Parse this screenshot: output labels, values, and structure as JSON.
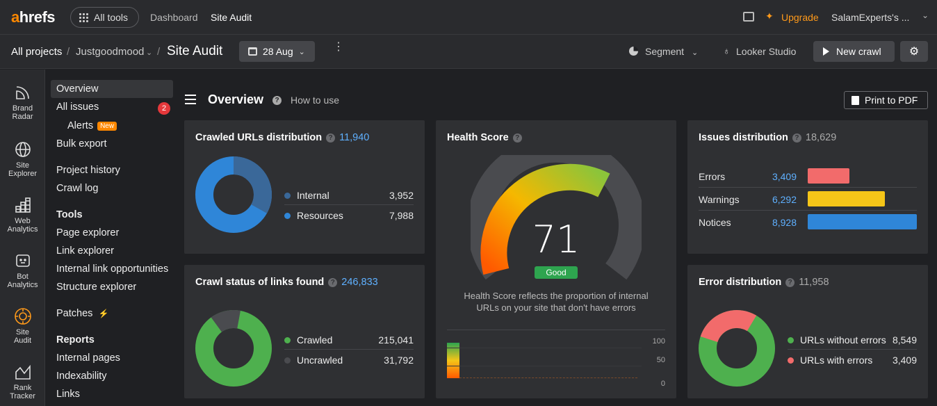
{
  "topbar": {
    "logo_a": "a",
    "logo_rest": "hrefs",
    "all_tools": "All tools",
    "nav": [
      "Dashboard",
      "Site Audit"
    ],
    "upgrade": "Upgrade",
    "account": "SalamExperts's ..."
  },
  "breadcrumb": {
    "all_projects": "All projects",
    "project": "Justgoodmood",
    "page": "Site Audit",
    "sep": "/",
    "date": "28 Aug",
    "segment": "Segment",
    "looker": "Looker Studio",
    "new_crawl": "New crawl"
  },
  "rail": [
    {
      "label": "Brand\nRadar",
      "icon": "radar-icon"
    },
    {
      "label": "Site\nExplorer",
      "icon": "globe-icon"
    },
    {
      "label": "Web\nAnalytics",
      "icon": "analytics-icon"
    },
    {
      "label": "Bot\nAnalytics",
      "icon": "bot-icon"
    },
    {
      "label": "Site\nAudit",
      "icon": "site-audit-icon"
    },
    {
      "label": "Rank\nTracker",
      "icon": "rank-tracker-icon"
    }
  ],
  "sidebar": {
    "overview": "Overview",
    "all_issues": "All issues",
    "issues_badge": "2",
    "alerts": "Alerts",
    "alerts_tag": "New",
    "bulk_export": "Bulk export",
    "project_history": "Project history",
    "crawl_log": "Crawl log",
    "tools_heading": "Tools",
    "page_explorer": "Page explorer",
    "link_explorer": "Link explorer",
    "internal_link_opps": "Internal link opportunities",
    "structure_explorer": "Structure explorer",
    "patches": "Patches",
    "reports_heading": "Reports",
    "internal_pages": "Internal pages",
    "indexability": "Indexability",
    "links": "Links"
  },
  "header": {
    "title": "Overview",
    "how_to_use": "How to use",
    "print": "Print to PDF"
  },
  "crawled": {
    "title": "Crawled URLs distribution",
    "total": "11,940",
    "rows": [
      {
        "label": "Internal",
        "value": "3,952",
        "color": "#3a6899"
      },
      {
        "label": "Resources",
        "value": "7,988",
        "color": "#2f86d8"
      }
    ]
  },
  "crawl_status": {
    "title": "Crawl status of links found",
    "total": "246,833",
    "rows": [
      {
        "label": "Crawled",
        "value": "215,041",
        "color": "#4eb04e"
      },
      {
        "label": "Uncrawled",
        "value": "31,792",
        "color": "#4a4b4f"
      }
    ]
  },
  "health": {
    "title": "Health Score",
    "score": "71",
    "status": "Good",
    "desc1": "Health Score reflects the proportion of internal",
    "desc2": "URLs on your site that don't have errors",
    "axis": [
      "100",
      "50",
      "0"
    ]
  },
  "issues": {
    "title": "Issues distribution",
    "total": "18,629",
    "rows": [
      {
        "label": "Errors",
        "value": "3,409",
        "color": "#f26b6b"
      },
      {
        "label": "Warnings",
        "value": "6,292",
        "color": "#f5c518"
      },
      {
        "label": "Notices",
        "value": "8,928",
        "color": "#2f86d8"
      }
    ]
  },
  "errors": {
    "title": "Error distribution",
    "total": "11,958",
    "rows": [
      {
        "label": "URLs without errors",
        "value": "8,549",
        "color": "#4eb04e"
      },
      {
        "label": "URLs with errors",
        "value": "3,409",
        "color": "#f26b6b"
      }
    ]
  }
}
